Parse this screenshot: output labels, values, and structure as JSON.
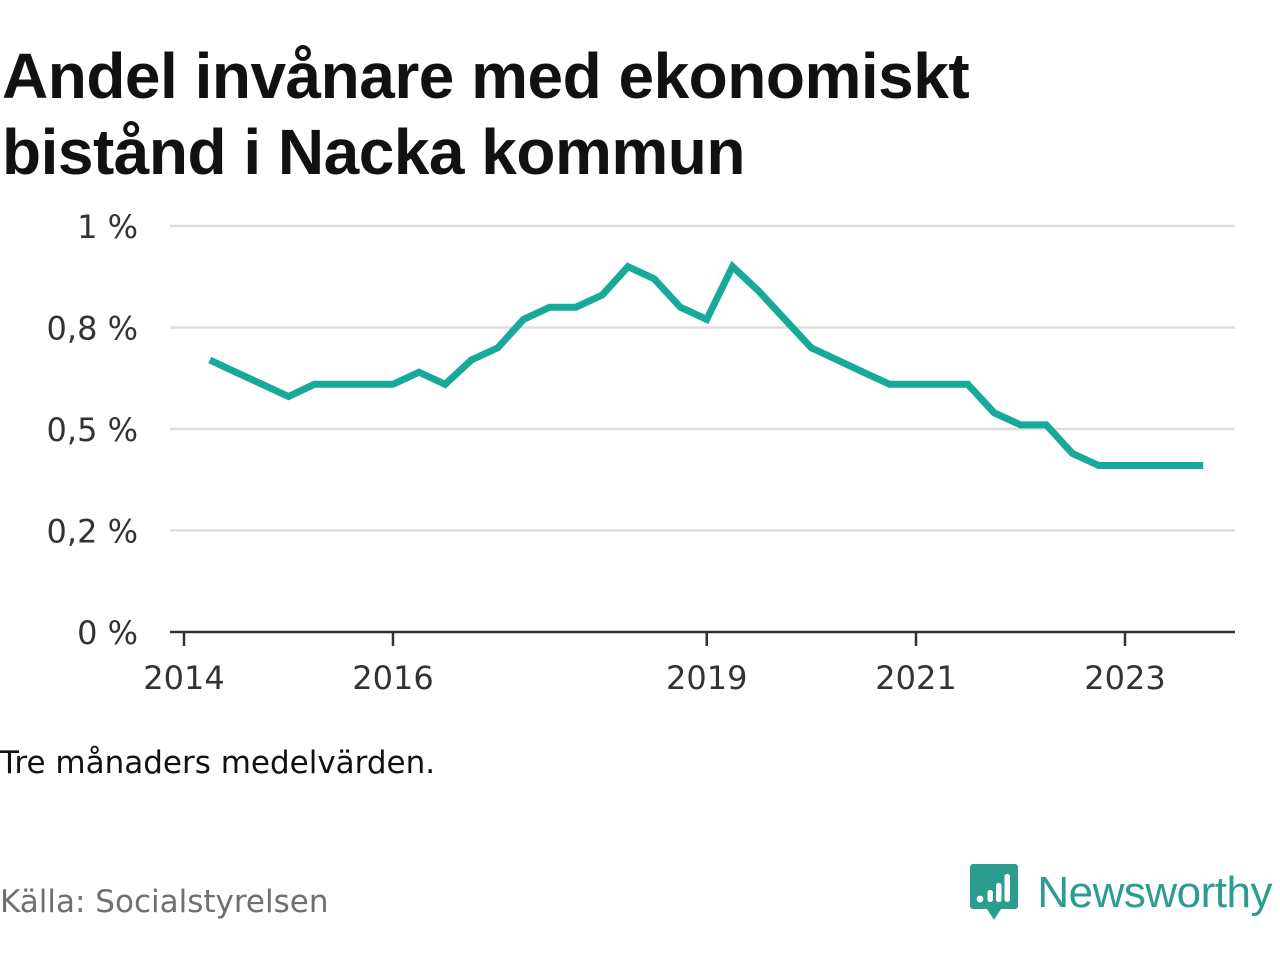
{
  "header": {
    "title_line1": "Andel invånare med ekonomiskt",
    "title_line2": "bistånd i Nacka kommun"
  },
  "footer": {
    "note": "Tre månaders medelvärden.",
    "source": "Källa: Socialstyrelsen",
    "brand": "Newsworthy"
  },
  "colors": {
    "line": "#17a99a",
    "grid": "#dddddd",
    "axis": "#333333",
    "brand": "#2a9d8f"
  },
  "icons": {
    "brand_logo": "bar-chart-speech-bubble-icon"
  },
  "chart_data": {
    "type": "line",
    "title": "Andel invånare med ekonomiskt bistånd i Nacka kommun",
    "xlabel": "",
    "ylabel": "",
    "x_ticks": [
      {
        "date": "2014-01-01",
        "label": "2014"
      },
      {
        "date": "2016-01-01",
        "label": "2016"
      },
      {
        "date": "2019-01-01",
        "label": "2019"
      },
      {
        "date": "2021-01-01",
        "label": "2021"
      },
      {
        "date": "2023-01-01",
        "label": "2023"
      }
    ],
    "y_ticks": [
      {
        "value": 0,
        "label": "0 %"
      },
      {
        "value": 0.25,
        "label": "0,2 %"
      },
      {
        "value": 0.5,
        "label": "0,5 %"
      },
      {
        "value": 0.75,
        "label": "0,8 %"
      },
      {
        "value": 1.0,
        "label": "1 %"
      }
    ],
    "ylim": [
      0,
      1.0
    ],
    "grid": true,
    "legend": "none",
    "series": [
      {
        "x": [
          "2014-04-01",
          "2014-07-01",
          "2014-10-01",
          "2015-01-01",
          "2015-04-01",
          "2015-07-01",
          "2015-10-01",
          "2016-01-01",
          "2016-04-01",
          "2016-07-01",
          "2016-10-01",
          "2017-01-01",
          "2017-04-01",
          "2017-07-01",
          "2017-10-01",
          "2018-01-01",
          "2018-04-01",
          "2018-07-01",
          "2018-10-01",
          "2019-01-01",
          "2019-04-01",
          "2019-07-01",
          "2019-10-01",
          "2020-01-01",
          "2020-04-01",
          "2020-07-01",
          "2020-10-01",
          "2021-01-01",
          "2021-04-01",
          "2021-07-01",
          "2021-10-01",
          "2022-01-01",
          "2022-04-01",
          "2022-07-01",
          "2022-10-01",
          "2023-01-01",
          "2023-04-01",
          "2023-07-01",
          "2023-10-01"
        ],
        "values": [
          0.67,
          0.64,
          0.61,
          0.58,
          0.61,
          0.61,
          0.61,
          0.61,
          0.64,
          0.61,
          0.67,
          0.7,
          0.77,
          0.8,
          0.8,
          0.83,
          0.9,
          0.87,
          0.8,
          0.77,
          0.9,
          0.84,
          0.77,
          0.7,
          0.67,
          0.64,
          0.61,
          0.61,
          0.61,
          0.61,
          0.54,
          0.51,
          0.51,
          0.44,
          0.41,
          0.41,
          0.41,
          0.41,
          0.41
        ]
      }
    ]
  }
}
